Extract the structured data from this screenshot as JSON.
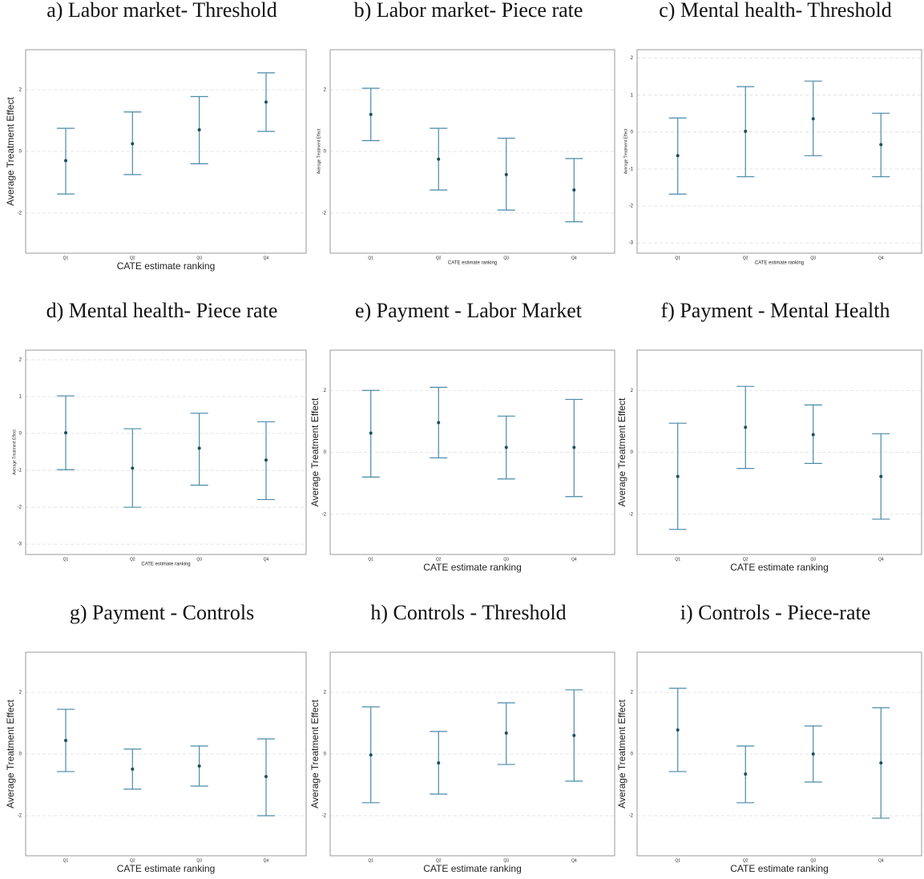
{
  "chart_data": [
    {
      "type": "errorbar",
      "title": "a) Labor market- Threshold",
      "xlabel": "CATE estimate ranking",
      "ylabel": "Average Treatment Effect",
      "categories": [
        "Q1",
        "Q2",
        "Q3",
        "Q4"
      ],
      "values": [
        -0.3,
        0.25,
        0.7,
        1.6
      ],
      "lower": [
        -1.38,
        -0.75,
        -0.4,
        0.65
      ],
      "upper": [
        0.75,
        1.28,
        1.78,
        2.55
      ],
      "ylim": [
        -3.3,
        3.3
      ],
      "yticks": [
        -2,
        0,
        2
      ],
      "grid": true,
      "color": "#4a8aa8",
      "point_color": "#1d4f5e"
    },
    {
      "type": "errorbar",
      "title": "b) Labor market- Piece rate",
      "xlabel": "CATE estimate ranking",
      "ylabel": "Average Treatment Effect",
      "categories": [
        "Q1",
        "Q2",
        "Q3",
        "Q4"
      ],
      "values": [
        1.2,
        -0.25,
        -0.75,
        -1.25
      ],
      "lower": [
        0.35,
        -1.25,
        -1.9,
        -2.28
      ],
      "upper": [
        2.05,
        0.75,
        0.43,
        -0.23
      ],
      "ylim": [
        -3.3,
        3.3
      ],
      "yticks": [
        -2,
        0,
        2
      ],
      "grid": true,
      "color": "#4a8aa8",
      "point_color": "#1d4f5e"
    },
    {
      "type": "errorbar",
      "title": "c) Mental health- Threshold",
      "xlabel": "CATE estimate ranking",
      "ylabel": "Average Treatment Effect",
      "categories": [
        "Q1",
        "Q2",
        "Q3",
        "Q4"
      ],
      "values": [
        -0.64,
        0.02,
        0.36,
        -0.34
      ],
      "lower": [
        -1.68,
        -1.21,
        -0.64,
        -1.21
      ],
      "upper": [
        0.38,
        1.23,
        1.38,
        0.51
      ],
      "ylim": [
        -3.28,
        2.23
      ],
      "yticks": [
        -3,
        -2,
        -1,
        0,
        1,
        2
      ],
      "grid": true,
      "color": "#4a8aa8",
      "point_color": "#1d4f5e"
    },
    {
      "type": "errorbar",
      "title": "d) Mental health- Piece rate",
      "xlabel": "CATE estimate ranking",
      "ylabel": "Average Treatment Effect",
      "categories": [
        "Q1",
        "Q2",
        "Q3",
        "Q4"
      ],
      "values": [
        0.02,
        -0.94,
        -0.4,
        -0.72
      ],
      "lower": [
        -0.98,
        -2.0,
        -1.4,
        -1.79
      ],
      "upper": [
        1.02,
        0.13,
        0.55,
        0.32
      ],
      "ylim": [
        -3.28,
        2.26
      ],
      "yticks": [
        -3,
        -2,
        -1,
        0,
        1,
        2
      ],
      "grid": true,
      "color": "#4a8aa8",
      "point_color": "#1d4f5e"
    },
    {
      "type": "errorbar",
      "title": "e) Payment - Labor Market",
      "xlabel": "CATE estimate ranking",
      "ylabel": "Average Treatment Effect",
      "categories": [
        "Q1",
        "Q2",
        "Q3",
        "Q4"
      ],
      "values": [
        0.62,
        0.96,
        0.16,
        0.16
      ],
      "lower": [
        -0.8,
        -0.18,
        -0.86,
        -1.43
      ],
      "upper": [
        2.0,
        2.1,
        1.17,
        1.71
      ],
      "ylim": [
        -3.3,
        3.3
      ],
      "yticks": [
        -2,
        0,
        2
      ],
      "grid": true,
      "color": "#4a8aa8",
      "point_color": "#1d4f5e"
    },
    {
      "type": "errorbar",
      "title": "f) Payment - Mental Health",
      "xlabel": "CATE estimate ranking",
      "ylabel": "Average Treatment Effect",
      "categories": [
        "Q1",
        "Q2",
        "Q3",
        "Q4"
      ],
      "values": [
        -0.78,
        0.81,
        0.57,
        -0.78
      ],
      "lower": [
        -2.49,
        -0.52,
        -0.36,
        -2.16
      ],
      "upper": [
        0.94,
        2.13,
        1.53,
        0.6
      ],
      "ylim": [
        -3.3,
        3.3
      ],
      "yticks": [
        -2,
        0,
        2
      ],
      "grid": true,
      "color": "#4a8aa8",
      "point_color": "#1d4f5e"
    },
    {
      "type": "errorbar",
      "title": "g) Payment - Controls",
      "xlabel": "CATE estimate ranking",
      "ylabel": "Average Treatment Effect",
      "categories": [
        "Q1",
        "Q2",
        "Q3",
        "Q4"
      ],
      "values": [
        0.44,
        -0.49,
        -0.39,
        -0.73
      ],
      "lower": [
        -0.57,
        -1.14,
        -1.04,
        -2.0
      ],
      "upper": [
        1.45,
        0.16,
        0.26,
        0.49
      ],
      "ylim": [
        -3.3,
        3.3
      ],
      "yticks": [
        -2,
        0,
        2
      ],
      "grid": true,
      "color": "#4a8aa8",
      "point_color": "#1d4f5e"
    },
    {
      "type": "errorbar",
      "title": "h) Controls - Threshold",
      "xlabel": "CATE estimate ranking",
      "ylabel": "Average Treatment Effect",
      "categories": [
        "Q1",
        "Q2",
        "Q3",
        "Q4"
      ],
      "values": [
        -0.03,
        -0.29,
        0.68,
        0.6
      ],
      "lower": [
        -1.58,
        -1.3,
        -0.34,
        -0.88
      ],
      "upper": [
        1.53,
        0.73,
        1.66,
        2.08
      ],
      "ylim": [
        -3.3,
        3.3
      ],
      "yticks": [
        -2,
        0,
        2
      ],
      "grid": true,
      "color": "#4a8aa8",
      "point_color": "#1d4f5e"
    },
    {
      "type": "errorbar",
      "title": "i) Controls - Piece-rate",
      "xlabel": "CATE estimate ranking",
      "ylabel": "Average Treatment Effect",
      "categories": [
        "Q1",
        "Q2",
        "Q3",
        "Q4"
      ],
      "values": [
        0.78,
        -0.65,
        0.0,
        -0.29
      ],
      "lower": [
        -0.57,
        -1.58,
        -0.91,
        -2.08
      ],
      "upper": [
        2.13,
        0.26,
        0.91,
        1.5
      ],
      "ylim": [
        -3.3,
        3.3
      ],
      "yticks": [
        -2,
        0,
        2
      ],
      "grid": true,
      "color": "#4a8aa8",
      "point_color": "#1d4f5e"
    }
  ]
}
